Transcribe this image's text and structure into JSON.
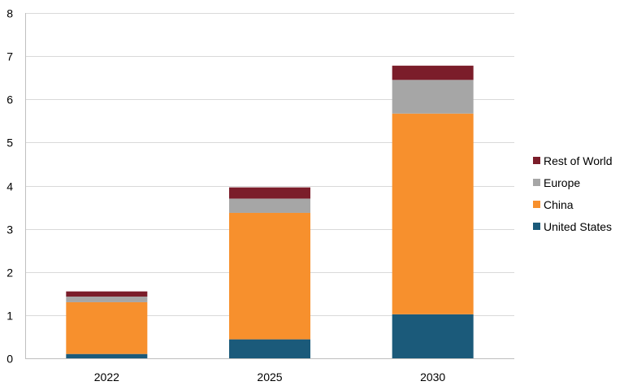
{
  "chart_data": {
    "type": "bar",
    "stacked": true,
    "categories": [
      "2022",
      "2025",
      "2030"
    ],
    "series": [
      {
        "name": "United States",
        "color": "#1b5a7a",
        "values": [
          0.1,
          0.44,
          1.02
        ]
      },
      {
        "name": "China",
        "color": "#f7902d",
        "values": [
          1.2,
          2.93,
          4.65
        ]
      },
      {
        "name": "Europe",
        "color": "#a6a6a6",
        "values": [
          0.13,
          0.33,
          0.78
        ]
      },
      {
        "name": "Rest of World",
        "color": "#7b1d2a",
        "values": [
          0.12,
          0.26,
          0.33
        ]
      }
    ],
    "ylim": [
      0,
      8
    ],
    "yticks": [
      0,
      1,
      2,
      3,
      4,
      5,
      6,
      7,
      8
    ],
    "grid": true,
    "legend": {
      "position": "right",
      "order": [
        "Rest of World",
        "Europe",
        "China",
        "United States"
      ]
    },
    "title": "",
    "xlabel": "",
    "ylabel": ""
  }
}
